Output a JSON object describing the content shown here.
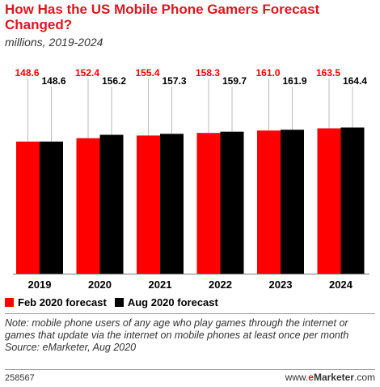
{
  "header": {
    "title": "How Has the US Mobile Phone Gamers Forecast Changed?",
    "subtitle": "millions, 2019-2024"
  },
  "chart_data": {
    "type": "bar",
    "title": "How Has the US Mobile Phone Gamers Forecast Changed?",
    "subtitle": "millions, 2019-2024",
    "categories": [
      "2019",
      "2020",
      "2021",
      "2022",
      "2023",
      "2024"
    ],
    "series": [
      {
        "name": "Feb 2020 forecast",
        "color": "#ff0000",
        "label_color": "#ff0000",
        "values": [
          148.6,
          152.4,
          155.4,
          158.3,
          161.0,
          163.5
        ],
        "labels": [
          "148.6",
          "152.4",
          "155.4",
          "158.3",
          "161.0",
          "163.5"
        ]
      },
      {
        "name": "Aug 2020 forecast",
        "color": "#000000",
        "label_color": "#000000",
        "values": [
          148.6,
          156.2,
          157.3,
          159.7,
          161.9,
          164.4
        ],
        "labels": [
          "148.6",
          "156.2",
          "157.3",
          "159.7",
          "161.9",
          "164.4"
        ]
      }
    ],
    "ylim": [
      0,
      235
    ],
    "grid": false,
    "legend": "bottom-left",
    "xlabel": "",
    "ylabel": ""
  },
  "footer": {
    "note_text": "Note: mobile phone users of any age who play games through the internet or games that update via the internet on mobile phones at least once per month",
    "source_text": "Source: eMarketer, Aug 2020",
    "chart_id": "258567",
    "brand_prefix": "www.",
    "brand_e": "e",
    "brand_name": "Marketer",
    "brand_suffix": ".com"
  }
}
